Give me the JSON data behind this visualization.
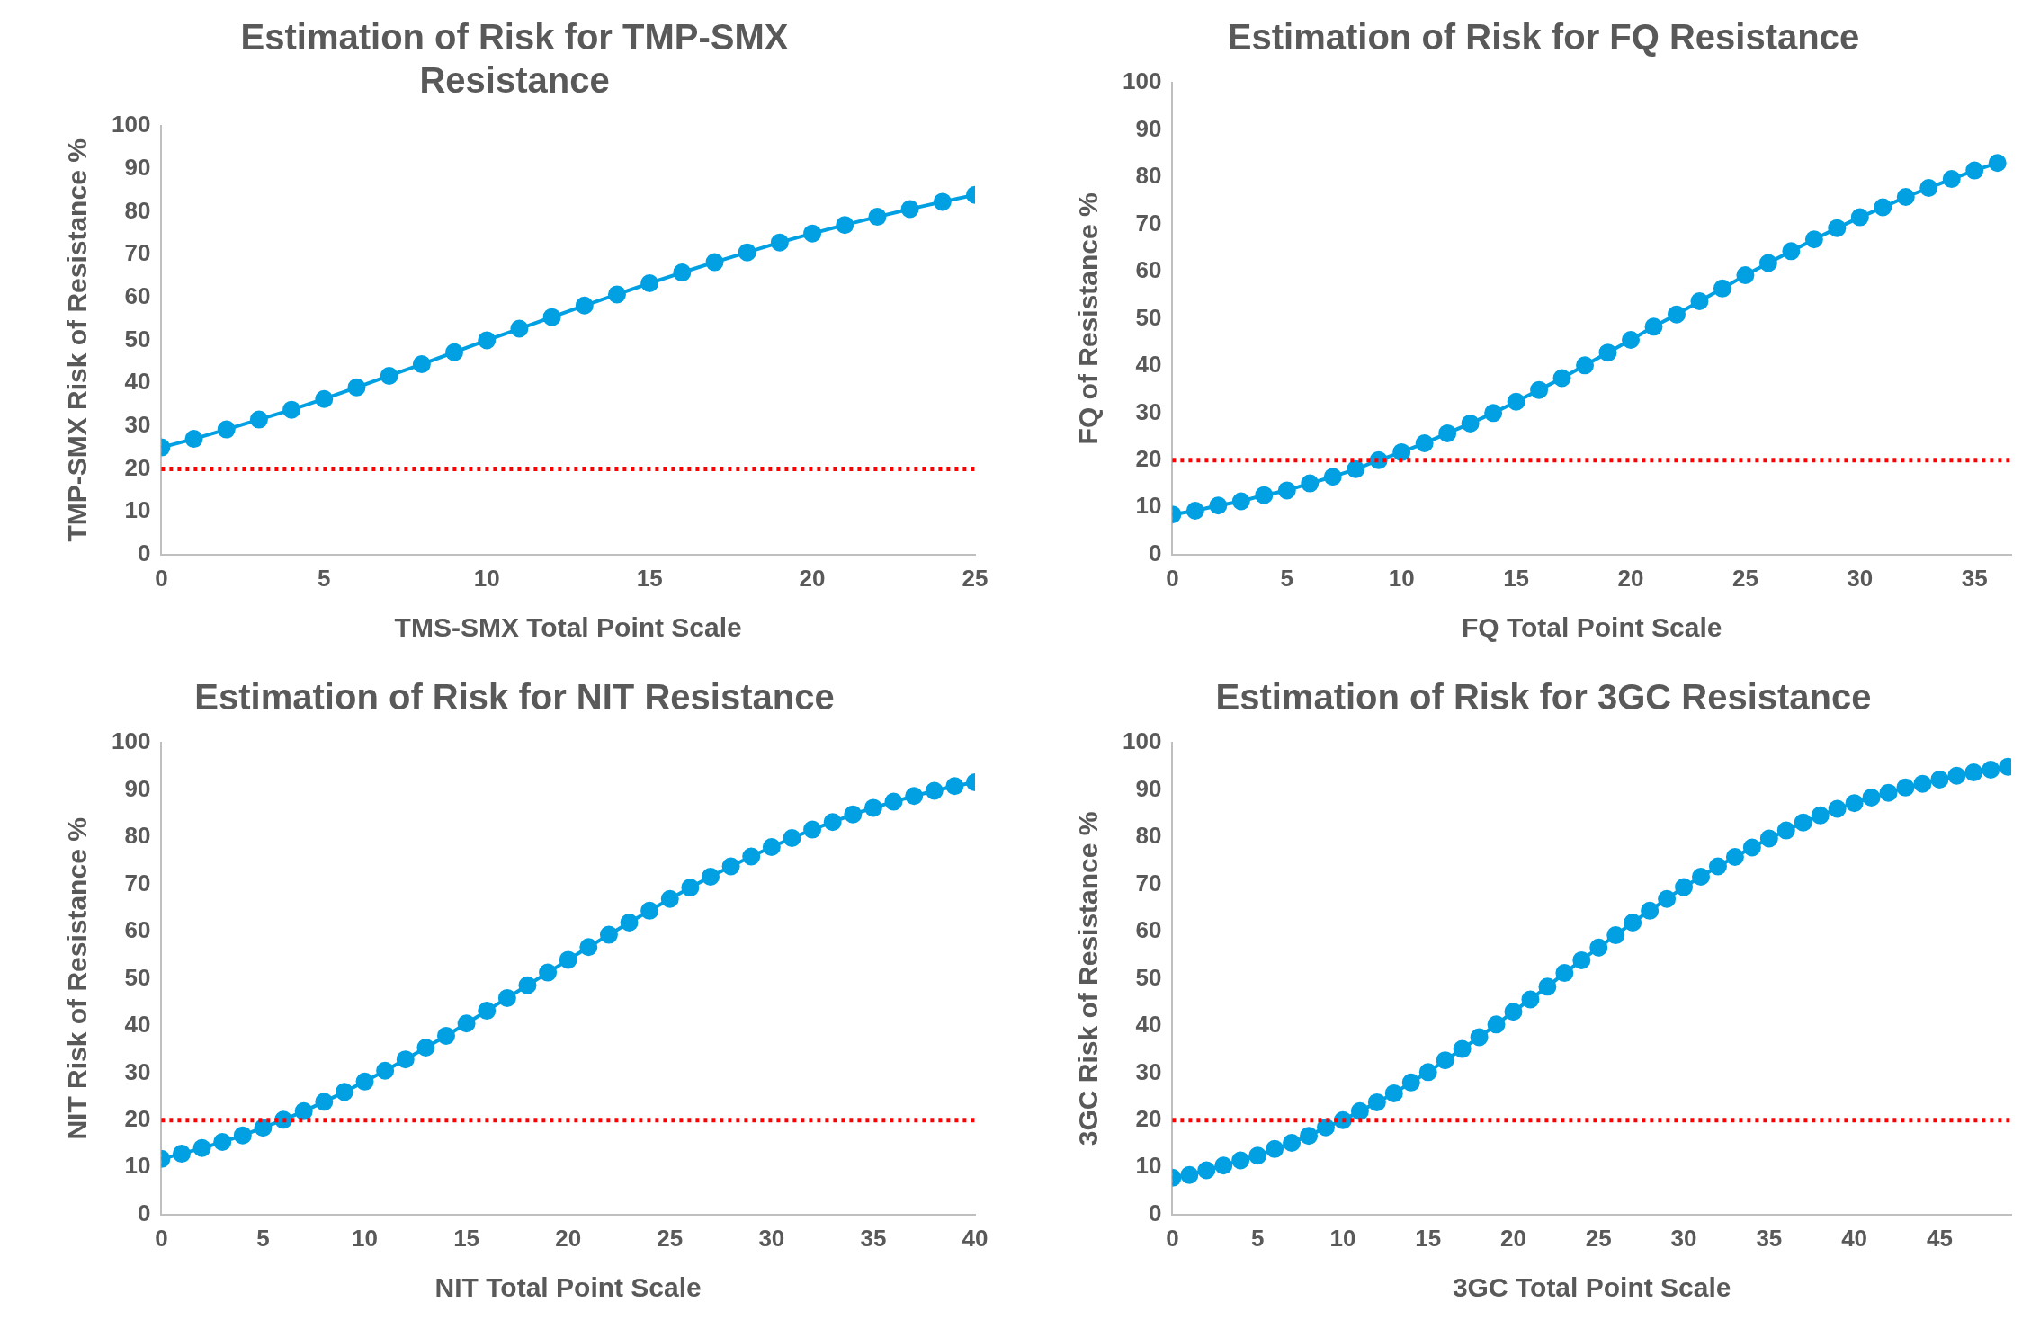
{
  "chart_data": [
    {
      "type": "line",
      "title": "Estimation of Risk for TMP-SMX Resistance",
      "xlabel": "TMS-SMX Total Point Scale",
      "ylabel": "TMP-SMX Risk of Resistance %",
      "x": [
        0,
        1,
        2,
        3,
        4,
        5,
        6,
        7,
        8,
        9,
        10,
        11,
        12,
        13,
        14,
        15,
        16,
        17,
        18,
        19,
        20,
        21,
        22,
        23,
        24,
        25
      ],
      "series": [
        {
          "color": "#00a0e3",
          "values": [
            25,
            27,
            29.2,
            31.5,
            33.8,
            36.3,
            39,
            41.7,
            44.4,
            47.2,
            50,
            52.7,
            55.4,
            58.1,
            60.7,
            63.3,
            65.8,
            68.2,
            70.5,
            72.8,
            74.9,
            76.9,
            78.8,
            80.6,
            82.3,
            83.9
          ]
        }
      ],
      "xlim": [
        0,
        25
      ],
      "xticks": [
        0,
        5,
        10,
        15,
        20,
        25
      ],
      "ylim": [
        0,
        100
      ],
      "yticks": [
        0,
        10,
        20,
        30,
        40,
        50,
        60,
        70,
        80,
        90,
        100
      ],
      "grid": false,
      "legend": false,
      "marker": "circle",
      "line_style": "solid",
      "ref_lines": [
        {
          "axis": "y",
          "value": 20,
          "color": "#ff0000",
          "line_style": "dotted"
        }
      ]
    },
    {
      "type": "line",
      "title": "Estimation of Risk for FQ Resistance",
      "xlabel": "FQ Total Point Scale",
      "ylabel": "FQ of Resistance %",
      "x": [
        0,
        1,
        2,
        3,
        4,
        5,
        6,
        7,
        8,
        9,
        10,
        11,
        12,
        13,
        14,
        15,
        16,
        17,
        18,
        19,
        20,
        21,
        22,
        23,
        24,
        25,
        26,
        27,
        28,
        29,
        30,
        31,
        32,
        33,
        34,
        35,
        36
      ],
      "series": [
        {
          "color": "#00a0e3",
          "values": [
            8.5,
            9.3,
            10.4,
            11.3,
            12.6,
            13.6,
            15.1,
            16.5,
            18.1,
            20,
            21.7,
            23.6,
            25.7,
            27.8,
            30,
            32.4,
            34.9,
            37.4,
            40.1,
            42.8,
            45.5,
            48.3,
            50.9,
            53.7,
            56.4,
            59.2,
            61.8,
            64.3,
            66.8,
            69.2,
            71.5,
            73.6,
            75.8,
            77.7,
            79.6,
            81.4,
            83
          ]
        }
      ],
      "xlim": [
        0,
        36.6
      ],
      "xticks": [
        0,
        5,
        10,
        15,
        20,
        25,
        30,
        35
      ],
      "ylim": [
        0,
        100
      ],
      "yticks": [
        0,
        10,
        20,
        30,
        40,
        50,
        60,
        70,
        80,
        90,
        100
      ],
      "grid": false,
      "legend": false,
      "marker": "circle",
      "line_style": "solid",
      "ref_lines": [
        {
          "axis": "y",
          "value": 20,
          "color": "#ff0000",
          "line_style": "dotted"
        }
      ]
    },
    {
      "type": "line",
      "title": "Estimation of Risk for NIT Resistance",
      "xlabel": "NIT Total Point Scale",
      "ylabel": "NIT Risk of Resistance %",
      "x": [
        0,
        1,
        2,
        3,
        4,
        5,
        6,
        7,
        8,
        9,
        10,
        11,
        12,
        13,
        14,
        15,
        16,
        17,
        18,
        19,
        20,
        21,
        22,
        23,
        24,
        25,
        26,
        27,
        28,
        29,
        30,
        31,
        32,
        33,
        34,
        35,
        36,
        37,
        38,
        39,
        40
      ],
      "series": [
        {
          "color": "#00a0e3",
          "values": [
            11.8,
            12.9,
            14.1,
            15.4,
            16.8,
            18.4,
            20.1,
            21.9,
            23.9,
            26,
            28.2,
            30.5,
            32.9,
            35.4,
            37.9,
            40.5,
            43.2,
            45.9,
            48.6,
            51.3,
            54,
            56.7,
            59.3,
            61.9,
            64.4,
            66.9,
            69.3,
            71.6,
            73.8,
            75.9,
            77.9,
            79.8,
            81.6,
            83.2,
            84.8,
            86.2,
            87.5,
            88.7,
            89.8,
            90.8,
            91.6
          ]
        }
      ],
      "xlim": [
        0,
        40
      ],
      "xticks": [
        0,
        5,
        10,
        15,
        20,
        25,
        30,
        35,
        40
      ],
      "ylim": [
        0,
        100
      ],
      "yticks": [
        0,
        10,
        20,
        30,
        40,
        50,
        60,
        70,
        80,
        90,
        100
      ],
      "grid": false,
      "legend": false,
      "marker": "circle",
      "line_style": "solid",
      "ref_lines": [
        {
          "axis": "y",
          "value": 20,
          "color": "#ff0000",
          "line_style": "dotted"
        }
      ]
    },
    {
      "type": "line",
      "title": "Estimation of Risk for 3GC Resistance",
      "xlabel": "3GC Total Point Scale",
      "ylabel": "3GC Risk of Resistance %",
      "x": [
        0,
        1,
        2,
        3,
        4,
        5,
        6,
        7,
        8,
        9,
        10,
        11,
        12,
        13,
        14,
        15,
        16,
        17,
        18,
        19,
        20,
        21,
        22,
        23,
        24,
        25,
        26,
        27,
        28,
        29,
        30,
        31,
        32,
        33,
        34,
        35,
        36,
        37,
        38,
        39,
        40,
        41,
        42,
        43,
        44,
        45,
        46,
        47,
        48,
        49
      ],
      "series": [
        {
          "color": "#00a0e3",
          "values": [
            7.8,
            8.4,
            9.4,
            10.4,
            11.5,
            12.5,
            13.9,
            15.2,
            16.7,
            18.5,
            20,
            21.9,
            23.8,
            25.7,
            28,
            30.2,
            32.7,
            35.1,
            37.6,
            40.3,
            43,
            45.6,
            48.3,
            51.2,
            53.9,
            56.6,
            59.2,
            61.9,
            64.4,
            66.9,
            69.4,
            71.6,
            73.8,
            75.8,
            77.8,
            79.7,
            81.4,
            83.1,
            84.6,
            86,
            87.2,
            88.4,
            89.4,
            90.5,
            91.3,
            92.2,
            93,
            93.7,
            94.3,
            94.9
          ]
        }
      ],
      "xlim": [
        0,
        49.2
      ],
      "xticks": [
        0,
        5,
        10,
        15,
        20,
        25,
        30,
        35,
        40,
        45
      ],
      "ylim": [
        0,
        100
      ],
      "yticks": [
        0,
        10,
        20,
        30,
        40,
        50,
        60,
        70,
        80,
        90,
        100
      ],
      "grid": false,
      "legend": false,
      "marker": "circle",
      "line_style": "solid",
      "ref_lines": [
        {
          "axis": "y",
          "value": 20,
          "color": "#ff0000",
          "line_style": "dotted"
        }
      ]
    }
  ]
}
